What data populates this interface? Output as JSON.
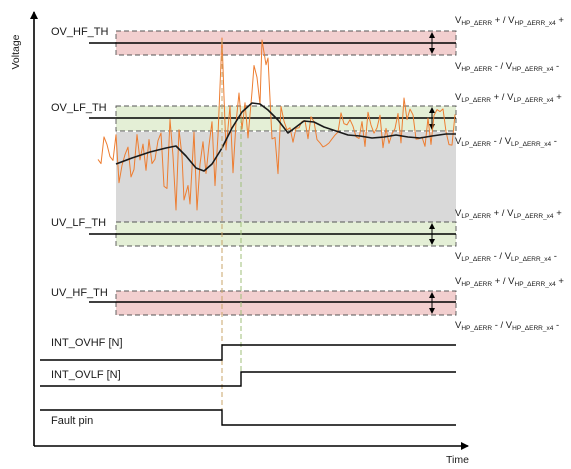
{
  "axes": {
    "y_label": "Voltage",
    "x_label": "Time"
  },
  "thresholds": {
    "ov_hf": "OV_HF_TH",
    "ov_lf": "OV_LF_TH",
    "uv_lf": "UV_LF_TH",
    "uv_hf": "UV_HF_TH"
  },
  "error_labels": {
    "hp_upper": {
      "v1": "V",
      "s1": "HP_ΔERR",
      "mid": " + / V",
      "s2": "HP_ΔERR_x4",
      "end": " +"
    },
    "hp_lower": {
      "v1": "V",
      "s1": "HP_ΔERR",
      "mid": " - / V",
      "s2": "HP_ΔERR_x4",
      "end": " -"
    },
    "lp_upper": {
      "v1": "V",
      "s1": "LP_ΔERR",
      "mid": " + / V",
      "s2": "LP_ΔERR_x4",
      "end": " +"
    },
    "lp_lower": {
      "v1": "V",
      "s1": "LP_ΔERR",
      "mid": " - / V",
      "s2": "LP_ΔERR_x4",
      "end": " -"
    }
  },
  "signals": {
    "int_ovhf": "INT_OVHF [N]",
    "int_ovlf": "INT_OVLF [N]",
    "fault_pin": "Fault pin"
  },
  "colors": {
    "hf_band": "#f2cfcf",
    "lf_band": "#e4efd6",
    "nominal_region": "#d9d9d9",
    "noisy_signal": "#ed7d31",
    "filtered_signal": "#1a1a1a",
    "marker_line": "#c9a56a"
  }
}
